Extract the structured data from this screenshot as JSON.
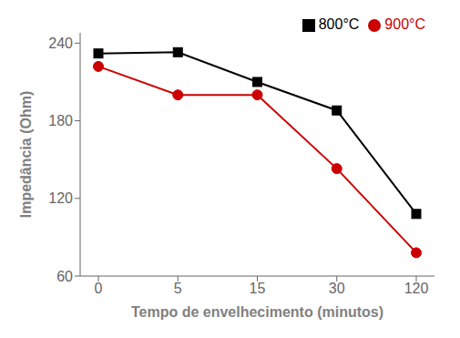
{
  "chart_data": {
    "type": "line",
    "xlabel": "Tempo de envelhecimento (minutos)",
    "ylabel": "Impedância (Ohm)",
    "categories": [
      "0",
      "5",
      "15",
      "30",
      "120"
    ],
    "series": [
      {
        "name": "800°C",
        "color": "#000000",
        "marker": "square",
        "values": [
          232,
          233,
          210,
          188,
          108
        ]
      },
      {
        "name": "900°C",
        "color": "#cc0000",
        "marker": "circle",
        "values": [
          222,
          200,
          200,
          143,
          78
        ]
      }
    ],
    "ylim": [
      60,
      248
    ],
    "yticks": [
      60,
      120,
      180,
      240
    ],
    "grid": false,
    "legend": "upper right"
  }
}
